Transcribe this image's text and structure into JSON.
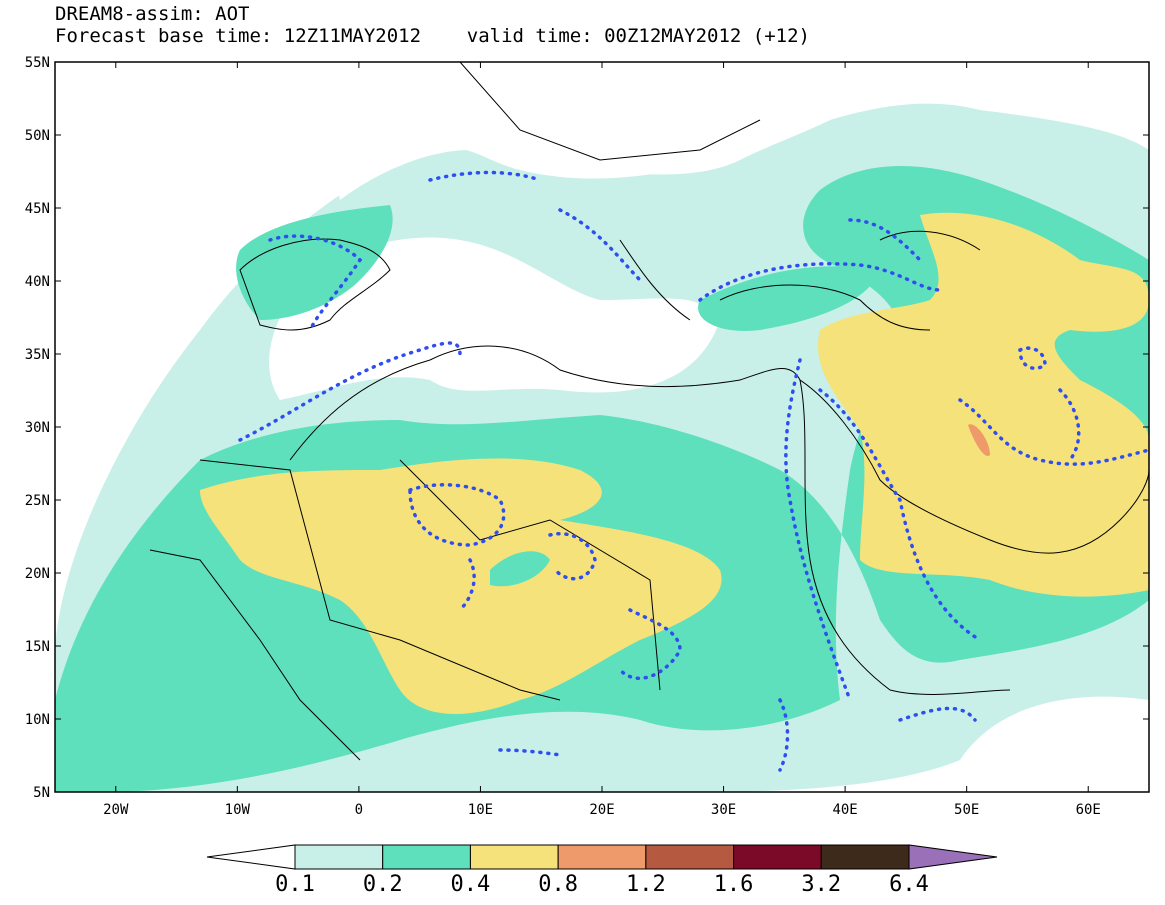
{
  "header": {
    "line1": "DREAM8-assim: AOT",
    "line2": "Forecast base time: 12Z11MAY2012    valid time: 00Z12MAY2012 (+12)"
  },
  "map": {
    "lon_range": [
      -25,
      65
    ],
    "lat_range": [
      5,
      55
    ],
    "lat_labels": [
      "5N",
      "10N",
      "15N",
      "20N",
      "25N",
      "30N",
      "35N",
      "40N",
      "45N",
      "50N",
      "55N"
    ],
    "lon_labels": [
      "20W",
      "10W",
      "0",
      "10E",
      "20E",
      "30E",
      "40E",
      "50E",
      "60E"
    ],
    "dust_field_colors": {
      "band_0_1": "#c8f0e8",
      "band_0_2": "#5ee0bc",
      "band_0_4": "#f5e27a",
      "band_0_8": "#ef9a6a"
    },
    "dry_deposition_contour_color": "#2f4df0"
  },
  "colorbar": {
    "labels": [
      "0.1",
      "0.2",
      "0.4",
      "0.8",
      "1.2",
      "1.6",
      "3.2",
      "6.4"
    ],
    "colors": [
      "#ffffff",
      "#c8f0e8",
      "#5ee0bc",
      "#f5e27a",
      "#ef9a6a",
      "#b55a40",
      "#7a0a28",
      "#3e2a1a",
      "#9a70b8"
    ]
  }
}
